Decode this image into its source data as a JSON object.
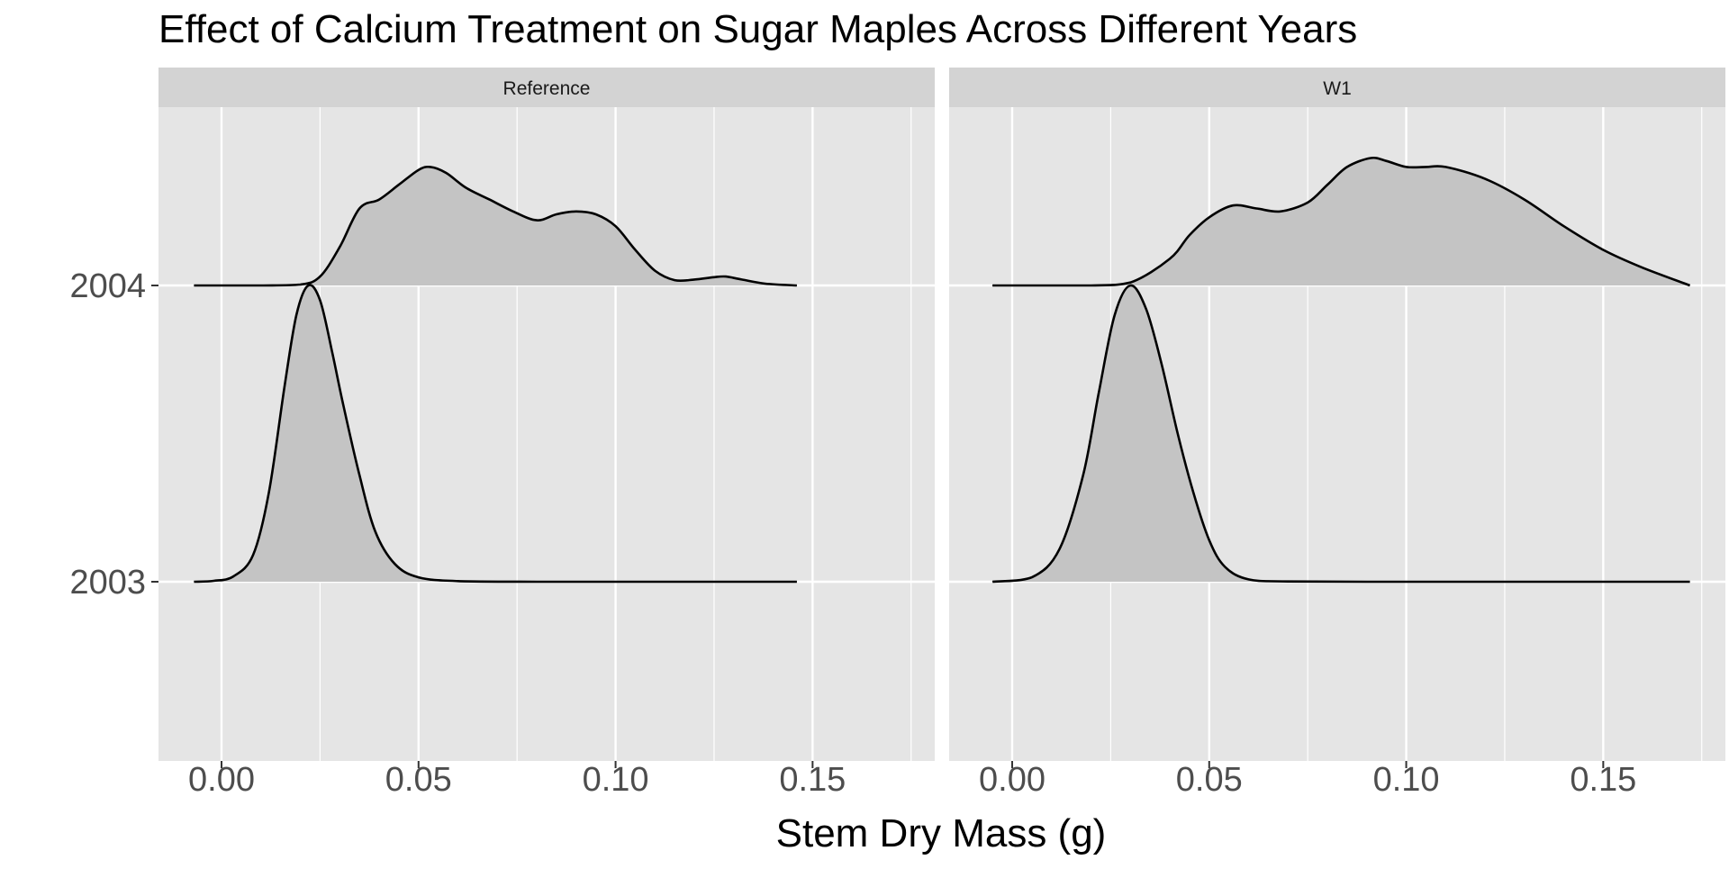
{
  "chart_data": {
    "type": "ridgeline-density",
    "title": "Effect of Calcium Treatment on Sugar Maples Across Different Years",
    "xlabel": "Stem Dry Mass (g)",
    "ylabel": "",
    "xlim": [
      -0.016,
      0.181
    ],
    "x_ticks": [
      0.0,
      0.05,
      0.1,
      0.15
    ],
    "x_tick_labels": [
      "0.00",
      "0.05",
      "0.10",
      "0.15"
    ],
    "y_categories": [
      "2003",
      "2004"
    ],
    "grid": true,
    "legend": "none",
    "colors": {
      "panel_background": "#e5e5e5",
      "strip_background": "#d3d3d3",
      "density_fill": "#c4c4c4",
      "density_line": "#000000",
      "grid_line": "#ffffff"
    },
    "panels": [
      {
        "name": "Reference",
        "series": [
          {
            "name": "2003",
            "x": [
              -0.007,
              -0.002,
              0.003,
              0.008,
              0.012,
              0.016,
              0.019,
              0.022,
              0.025,
              0.028,
              0.031,
              0.035,
              0.039,
              0.044,
              0.05,
              0.06,
              0.08,
              0.1,
              0.12,
              0.146
            ],
            "height": [
              0.0,
              0.003,
              0.018,
              0.09,
              0.3,
              0.66,
              0.9,
              1.0,
              0.95,
              0.78,
              0.59,
              0.36,
              0.17,
              0.06,
              0.015,
              0.002,
              0.0,
              0.0,
              0.0,
              0.0
            ]
          },
          {
            "name": "2004",
            "x": [
              -0.007,
              0.01,
              0.02,
              0.025,
              0.03,
              0.035,
              0.04,
              0.045,
              0.05,
              0.053,
              0.057,
              0.062,
              0.068,
              0.074,
              0.08,
              0.085,
              0.09,
              0.095,
              0.1,
              0.105,
              0.11,
              0.115,
              0.12,
              0.125,
              0.128,
              0.132,
              0.138,
              0.146
            ],
            "height": [
              0.0,
              0.0,
              0.003,
              0.03,
              0.13,
              0.26,
              0.29,
              0.34,
              0.39,
              0.4,
              0.38,
              0.33,
              0.29,
              0.25,
              0.22,
              0.24,
              0.25,
              0.24,
              0.2,
              0.12,
              0.05,
              0.018,
              0.02,
              0.028,
              0.03,
              0.02,
              0.006,
              0.0
            ]
          }
        ]
      },
      {
        "name": "W1",
        "series": [
          {
            "name": "2003",
            "x": [
              -0.005,
              0.005,
              0.012,
              0.018,
              0.022,
              0.026,
              0.03,
              0.034,
              0.038,
              0.042,
              0.046,
              0.05,
              0.054,
              0.06,
              0.07,
              0.09,
              0.12,
              0.15,
              0.172
            ],
            "height": [
              0.0,
              0.015,
              0.11,
              0.36,
              0.64,
              0.9,
              1.0,
              0.92,
              0.73,
              0.5,
              0.3,
              0.14,
              0.05,
              0.008,
              0.001,
              0.0,
              0.0,
              0.0,
              0.0
            ]
          },
          {
            "name": "2004",
            "x": [
              -0.005,
              0.02,
              0.03,
              0.04,
              0.045,
              0.05,
              0.056,
              0.062,
              0.068,
              0.075,
              0.08,
              0.085,
              0.091,
              0.095,
              0.1,
              0.105,
              0.11,
              0.12,
              0.13,
              0.14,
              0.15,
              0.16,
              0.172
            ],
            "height": [
              0.0,
              0.0,
              0.01,
              0.09,
              0.17,
              0.23,
              0.27,
              0.26,
              0.25,
              0.28,
              0.34,
              0.4,
              0.43,
              0.42,
              0.4,
              0.4,
              0.4,
              0.36,
              0.29,
              0.2,
              0.12,
              0.06,
              0.0
            ]
          }
        ]
      }
    ]
  }
}
